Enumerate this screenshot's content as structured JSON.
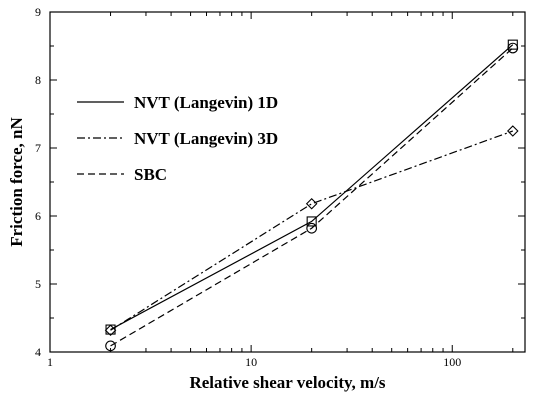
{
  "chart_data": {
    "type": "line",
    "xlabel": "Relative shear velocity, m/s",
    "ylabel": "Friction force, nN",
    "xscale": "log",
    "xlim": [
      1,
      230
    ],
    "ylim": [
      4,
      9
    ],
    "x_ticks": [
      1,
      10,
      100
    ],
    "x_tick_labels": [
      "1",
      "10",
      "100"
    ],
    "y_ticks": [
      4,
      5,
      6,
      7,
      8,
      9
    ],
    "y_tick_labels": [
      "4",
      "5",
      "6",
      "7",
      "8",
      "9"
    ],
    "grid": false,
    "legend_position": "upper-left",
    "x": [
      2,
      20,
      200
    ],
    "series": [
      {
        "name": "NVT (Langevin) 1D",
        "linestyle": "solid",
        "marker": "square",
        "values": [
          4.33,
          5.92,
          8.52
        ]
      },
      {
        "name": "NVT (Langevin) 3D",
        "linestyle": "dashdot",
        "marker": "diamond",
        "values": [
          4.32,
          6.18,
          7.25
        ]
      },
      {
        "name": "SBC",
        "linestyle": "dashed",
        "marker": "circle",
        "values": [
          4.09,
          5.82,
          8.47
        ]
      }
    ]
  }
}
